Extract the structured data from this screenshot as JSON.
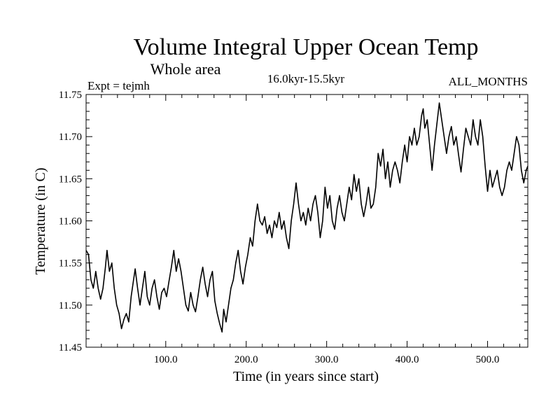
{
  "chart_data": {
    "type": "line",
    "title": "Volume Integral Upper Ocean Temp",
    "subtitle": "Whole area",
    "expt_label": "Expt = tejmh",
    "period_label": "16.0kyr-15.5kyr",
    "months_label": "ALL_MONTHS",
    "xlabel": "Time (in years since start)",
    "ylabel": "Temperature (in C)",
    "xlim": [
      1,
      550
    ],
    "ylim": [
      11.45,
      11.75
    ],
    "x_ticks": [
      100,
      200,
      300,
      400,
      500
    ],
    "x_tick_labels": [
      "100.0",
      "200.0",
      "300.0",
      "400.0",
      "500.0"
    ],
    "y_ticks": [
      11.45,
      11.5,
      11.55,
      11.6,
      11.65,
      11.7,
      11.75
    ],
    "y_tick_labels": [
      "11.45",
      "11.50",
      "11.55",
      "11.60",
      "11.65",
      "11.70",
      "11.75"
    ],
    "grid": false,
    "series": [
      {
        "name": "Volume integral upper ocean temperature",
        "points": [
          [
            1,
            11.565
          ],
          [
            4,
            11.56
          ],
          [
            7,
            11.53
          ],
          [
            10,
            11.52
          ],
          [
            13,
            11.54
          ],
          [
            16,
            11.52
          ],
          [
            19,
            11.507
          ],
          [
            22,
            11.52
          ],
          [
            25,
            11.545
          ],
          [
            27,
            11.565
          ],
          [
            30,
            11.54
          ],
          [
            33,
            11.55
          ],
          [
            36,
            11.52
          ],
          [
            39,
            11.5
          ],
          [
            42,
            11.49
          ],
          [
            45,
            11.472
          ],
          [
            48,
            11.483
          ],
          [
            51,
            11.49
          ],
          [
            54,
            11.48
          ],
          [
            57,
            11.51
          ],
          [
            60,
            11.53
          ],
          [
            62,
            11.543
          ],
          [
            65,
            11.52
          ],
          [
            68,
            11.5
          ],
          [
            71,
            11.52
          ],
          [
            74,
            11.54
          ],
          [
            77,
            11.51
          ],
          [
            80,
            11.5
          ],
          [
            83,
            11.52
          ],
          [
            86,
            11.53
          ],
          [
            89,
            11.51
          ],
          [
            92,
            11.495
          ],
          [
            95,
            11.515
          ],
          [
            98,
            11.52
          ],
          [
            101,
            11.51
          ],
          [
            104,
            11.528
          ],
          [
            107,
            11.545
          ],
          [
            110,
            11.565
          ],
          [
            113,
            11.54
          ],
          [
            116,
            11.555
          ],
          [
            119,
            11.54
          ],
          [
            122,
            11.52
          ],
          [
            125,
            11.5
          ],
          [
            128,
            11.493
          ],
          [
            131,
            11.515
          ],
          [
            134,
            11.5
          ],
          [
            137,
            11.492
          ],
          [
            140,
            11.51
          ],
          [
            143,
            11.53
          ],
          [
            146,
            11.545
          ],
          [
            149,
            11.525
          ],
          [
            152,
            11.51
          ],
          [
            155,
            11.53
          ],
          [
            158,
            11.54
          ],
          [
            161,
            11.505
          ],
          [
            164,
            11.49
          ],
          [
            167,
            11.478
          ],
          [
            170,
            11.468
          ],
          [
            172,
            11.495
          ],
          [
            175,
            11.48
          ],
          [
            178,
            11.5
          ],
          [
            181,
            11.52
          ],
          [
            184,
            11.53
          ],
          [
            187,
            11.55
          ],
          [
            190,
            11.565
          ],
          [
            193,
            11.54
          ],
          [
            196,
            11.525
          ],
          [
            199,
            11.545
          ],
          [
            202,
            11.56
          ],
          [
            205,
            11.58
          ],
          [
            208,
            11.57
          ],
          [
            211,
            11.6
          ],
          [
            214,
            11.62
          ],
          [
            217,
            11.6
          ],
          [
            220,
            11.595
          ],
          [
            223,
            11.605
          ],
          [
            226,
            11.585
          ],
          [
            229,
            11.595
          ],
          [
            232,
            11.58
          ],
          [
            235,
            11.6
          ],
          [
            238,
            11.592
          ],
          [
            241,
            11.61
          ],
          [
            244,
            11.59
          ],
          [
            247,
            11.6
          ],
          [
            250,
            11.58
          ],
          [
            253,
            11.567
          ],
          [
            256,
            11.6
          ],
          [
            259,
            11.62
          ],
          [
            262,
            11.645
          ],
          [
            265,
            11.62
          ],
          [
            268,
            11.6
          ],
          [
            271,
            11.61
          ],
          [
            274,
            11.595
          ],
          [
            277,
            11.615
          ],
          [
            280,
            11.6
          ],
          [
            283,
            11.62
          ],
          [
            286,
            11.63
          ],
          [
            289,
            11.61
          ],
          [
            292,
            11.58
          ],
          [
            295,
            11.6
          ],
          [
            298,
            11.64
          ],
          [
            301,
            11.615
          ],
          [
            304,
            11.63
          ],
          [
            307,
            11.6
          ],
          [
            310,
            11.59
          ],
          [
            313,
            11.615
          ],
          [
            316,
            11.63
          ],
          [
            319,
            11.61
          ],
          [
            322,
            11.6
          ],
          [
            325,
            11.62
          ],
          [
            328,
            11.64
          ],
          [
            331,
            11.625
          ],
          [
            334,
            11.655
          ],
          [
            337,
            11.635
          ],
          [
            340,
            11.65
          ],
          [
            343,
            11.62
          ],
          [
            346,
            11.605
          ],
          [
            349,
            11.62
          ],
          [
            352,
            11.64
          ],
          [
            355,
            11.615
          ],
          [
            358,
            11.62
          ],
          [
            361,
            11.64
          ],
          [
            364,
            11.68
          ],
          [
            367,
            11.665
          ],
          [
            370,
            11.685
          ],
          [
            373,
            11.65
          ],
          [
            376,
            11.67
          ],
          [
            379,
            11.64
          ],
          [
            382,
            11.66
          ],
          [
            385,
            11.67
          ],
          [
            388,
            11.66
          ],
          [
            391,
            11.645
          ],
          [
            394,
            11.67
          ],
          [
            397,
            11.69
          ],
          [
            400,
            11.67
          ],
          [
            403,
            11.7
          ],
          [
            406,
            11.69
          ],
          [
            409,
            11.71
          ],
          [
            412,
            11.69
          ],
          [
            415,
            11.7
          ],
          [
            418,
            11.725
          ],
          [
            420,
            11.733
          ],
          [
            422,
            11.71
          ],
          [
            425,
            11.72
          ],
          [
            428,
            11.69
          ],
          [
            431,
            11.66
          ],
          [
            434,
            11.69
          ],
          [
            437,
            11.715
          ],
          [
            440,
            11.74
          ],
          [
            443,
            11.72
          ],
          [
            446,
            11.7
          ],
          [
            449,
            11.68
          ],
          [
            452,
            11.7
          ],
          [
            455,
            11.712
          ],
          [
            458,
            11.69
          ],
          [
            461,
            11.7
          ],
          [
            464,
            11.678
          ],
          [
            467,
            11.658
          ],
          [
            470,
            11.685
          ],
          [
            473,
            11.71
          ],
          [
            476,
            11.7
          ],
          [
            479,
            11.69
          ],
          [
            482,
            11.72
          ],
          [
            485,
            11.7
          ],
          [
            488,
            11.69
          ],
          [
            491,
            11.72
          ],
          [
            494,
            11.7
          ],
          [
            497,
            11.665
          ],
          [
            500,
            11.635
          ],
          [
            503,
            11.66
          ],
          [
            506,
            11.64
          ],
          [
            509,
            11.65
          ],
          [
            512,
            11.66
          ],
          [
            515,
            11.64
          ],
          [
            518,
            11.63
          ],
          [
            521,
            11.64
          ],
          [
            524,
            11.66
          ],
          [
            527,
            11.67
          ],
          [
            530,
            11.66
          ],
          [
            533,
            11.68
          ],
          [
            536,
            11.7
          ],
          [
            539,
            11.69
          ],
          [
            542,
            11.66
          ],
          [
            545,
            11.645
          ],
          [
            548,
            11.66
          ],
          [
            550,
            11.665
          ]
        ]
      }
    ]
  }
}
